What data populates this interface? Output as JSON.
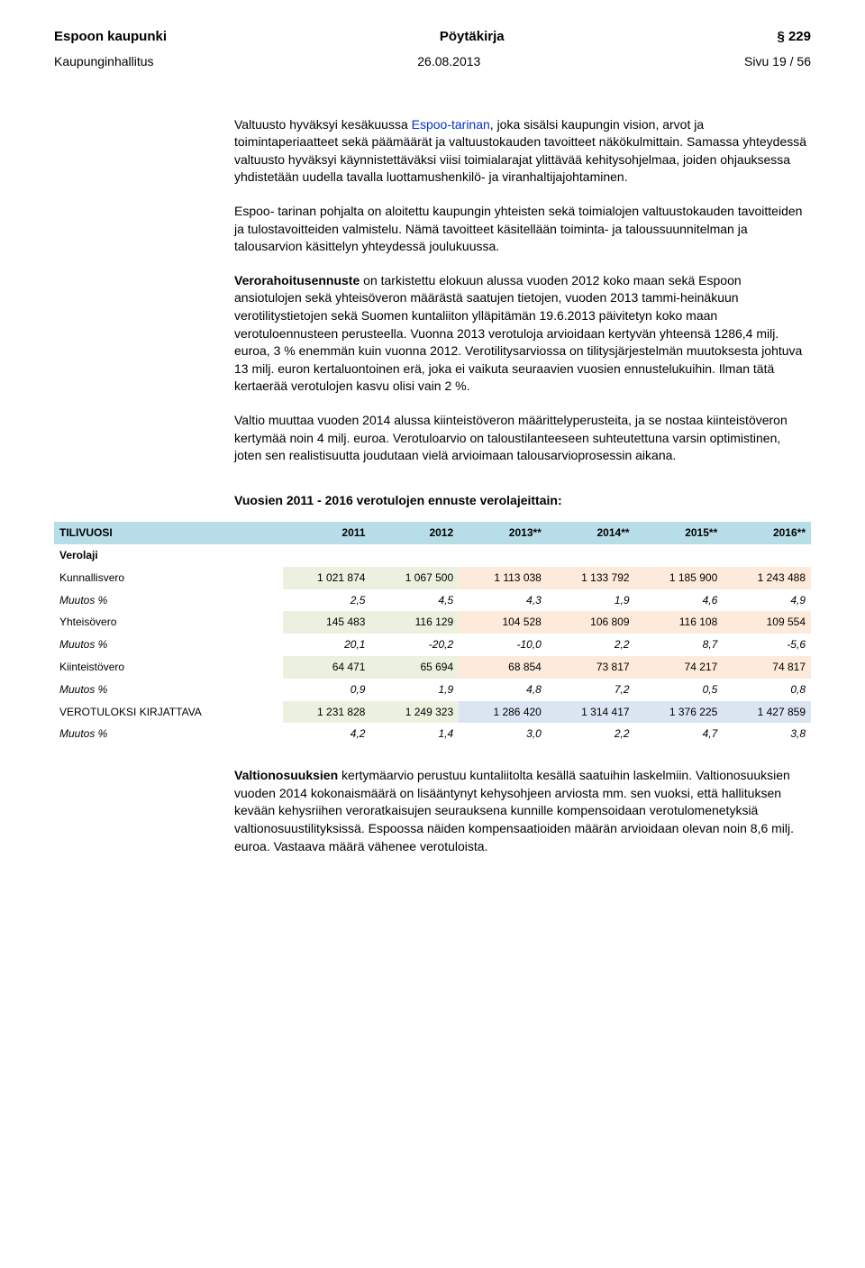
{
  "header": {
    "left": "Espoon kaupunki",
    "center": "Pöytäkirja",
    "right": "§ 229",
    "sub_left": "Kaupunginhallitus",
    "sub_center": "26.08.2013",
    "sub_right": "Sivu 19 / 56"
  },
  "paragraphs": {
    "p1_pre": "Valtuusto hyväksyi kesäkuussa ",
    "p1_link": "Espoo-tarinan",
    "p1_post": ", joka sisälsi kaupungin vision, arvot ja toimintaperiaatteet sekä päämäärät ja valtuustokauden tavoitteet näkökulmittain. Samassa yhteydessä valtuusto hyväksyi käynnistettäväksi viisi toimialarajat ylittävää kehitysohjelmaa, joiden ohjauksessa yhdistetään uudella tavalla luottamushenkilö- ja viranhaltijajohtaminen.",
    "p2": "Espoo- tarinan pohjalta on aloitettu kaupungin yhteisten sekä toimialojen valtuustokauden tavoitteiden ja tulostavoitteiden valmistelu. Nämä tavoitteet käsitellään toiminta- ja taloussuunnitelman ja talousarvion käsittelyn yhteydessä joulukuussa.",
    "p3_bold": "Verorahoitusennuste",
    "p3_rest": " on tarkistettu elokuun alussa vuoden 2012 koko maan sekä Espoon ansiotulojen sekä yhteisöveron määrästä saatujen tietojen, vuoden 2013 tammi-heinäkuun verotilitystietojen sekä Suomen kuntaliiton ylläpitämän 19.6.2013 päivitetyn koko maan verotuloennusteen perusteella.  Vuonna 2013 verotuloja arvioidaan kertyvän yhteensä 1286,4 milj. euroa, 3 % enemmän kuin vuonna 2012. Verotilitysarviossa on tilitysjärjestelmän muutoksesta johtuva 13 milj. euron kertaluontoinen erä, joka ei vaikuta seuraavien vuosien ennustelukuihin. Ilman tätä kertaerää verotulojen kasvu olisi vain 2 %.",
    "p4": "Valtio muuttaa vuoden 2014 alussa kiinteistöveron määrittelyperusteita, ja se nostaa kiinteistöveron kertymää noin 4 milj. euroa.  Verotuloarvio on taloustilanteeseen suhteutettuna varsin optimistinen, joten sen realistisuutta joudutaan vielä arvioimaan talousarvioprosessin aikana.",
    "table_title": "Vuosien 2011 - 2016 verotulojen ennuste verolajeittain:"
  },
  "table": {
    "colors": {
      "header_bg": "#b7dee8",
      "green": "#ebf1de",
      "tan": "#fdeada",
      "blue": "#dbe5f1"
    },
    "columns": [
      "TILIVUOSI",
      "2011",
      "2012",
      "2013**",
      "2014**",
      "2015**",
      "2016**"
    ],
    "verolaji_label": "Verolaji",
    "rows": [
      {
        "label": "Kunnallisvero",
        "cells": [
          "1 021 874",
          "1 067 500",
          "1 113 038",
          "1 133 792",
          "1 185 900",
          "1 243 488"
        ],
        "shade": [
          "green",
          "green",
          "tan",
          "tan",
          "tan",
          "tan"
        ],
        "italic": false
      },
      {
        "label": "Muutos %",
        "cells": [
          "2,5",
          "4,5",
          "4,3",
          "1,9",
          "4,6",
          "4,9"
        ],
        "shade": [
          "",
          "",
          "",
          "",
          "",
          ""
        ],
        "italic": true
      },
      {
        "label": "Yhteisövero",
        "cells": [
          "145 483",
          "116 129",
          "104 528",
          "106 809",
          "116 108",
          "109 554"
        ],
        "shade": [
          "green",
          "green",
          "tan",
          "tan",
          "tan",
          "tan"
        ],
        "italic": false
      },
      {
        "label": "Muutos %",
        "cells": [
          "20,1",
          "-20,2",
          "-10,0",
          "2,2",
          "8,7",
          "-5,6"
        ],
        "shade": [
          "",
          "",
          "",
          "",
          "",
          ""
        ],
        "italic": true
      },
      {
        "label": "Kiinteistövero",
        "cells": [
          "64 471",
          "65 694",
          "68 854",
          "73 817",
          "74 217",
          "74 817"
        ],
        "shade": [
          "green",
          "green",
          "tan",
          "tan",
          "tan",
          "tan"
        ],
        "italic": false
      },
      {
        "label": "Muutos %",
        "cells": [
          "0,9",
          "1,9",
          "4,8",
          "7,2",
          "0,5",
          "0,8"
        ],
        "shade": [
          "",
          "",
          "",
          "",
          "",
          ""
        ],
        "italic": true
      },
      {
        "label": "VEROTULOKSI KIRJATTAVA",
        "cells": [
          "1 231 828",
          "1 249 323",
          "1 286 420",
          "1 314 417",
          "1 376 225",
          "1 427 859"
        ],
        "shade": [
          "green",
          "green",
          "blue",
          "blue",
          "blue",
          "blue"
        ],
        "italic": false
      },
      {
        "label": "Muutos %",
        "cells": [
          "4,2",
          "1,4",
          "3,0",
          "2,2",
          "4,7",
          "3,8"
        ],
        "shade": [
          "",
          "",
          "",
          "",
          "",
          ""
        ],
        "italic": true
      }
    ]
  },
  "footer": {
    "bold": "Valtionosuuksien",
    "rest": " kertymäarvio perustuu kuntaliitolta kesällä saatuihin laskelmiin.  Valtionosuuksien vuoden 2014 kokonaismäärä on lisääntynyt kehysohjeen arviosta mm. sen vuoksi, että hallituksen kevään kehysriihen veroratkaisujen seurauksena kunnille kompensoidaan verotulomenetyksiä valtionosuustilityksissä.  Espoossa näiden kompensaatioiden määrän arvioidaan olevan noin 8,6 milj. euroa. Vastaava määrä vähenee verotuloista."
  }
}
